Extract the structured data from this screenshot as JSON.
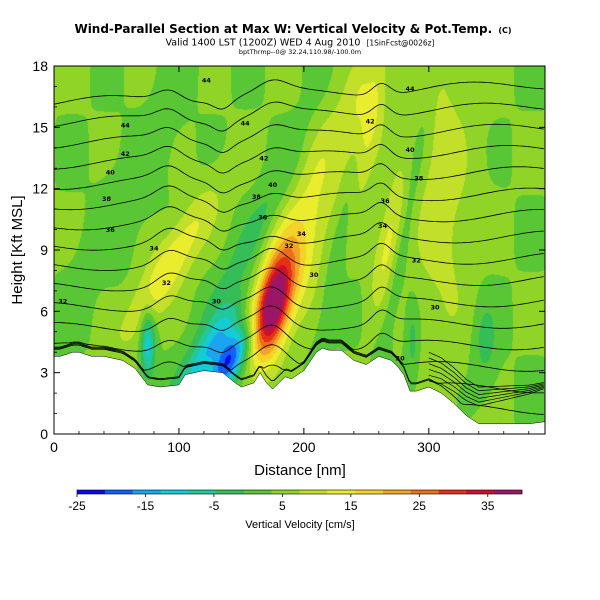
{
  "chart_data": {
    "type": "heatmap",
    "title": "Wind-Parallel Section at Max W: Vertical Velocity & Pot.Temp.",
    "title_mark": "(C)",
    "subtitle": "Valid 1400 LST (1200Z) WED 4 Aug 2010",
    "subtitle_note": "[1SinFcst@0026z]",
    "sub_subtitle": "bptThrmp--0@ 32.24,110.98/-100.0m",
    "xlabel": "Distance [nm]",
    "ylabel": "Height [Kft MSL]",
    "xlim": [
      0,
      393
    ],
    "ylim": [
      0,
      18
    ],
    "xticks": [
      0,
      100,
      200,
      300
    ],
    "yticks": [
      0,
      3,
      6,
      9,
      12,
      15,
      18
    ],
    "colorbar": {
      "label": "Vertical Velocity [cm/s]",
      "range": [
        -25,
        40
      ],
      "ticks": [
        -25,
        -15,
        -5,
        5,
        15,
        25,
        35
      ],
      "colors": [
        "#0a08e6",
        "#1060f8",
        "#1aa4f2",
        "#14ccd8",
        "#22c89a",
        "#35bd58",
        "#58c635",
        "#90d428",
        "#c2e02a",
        "#eaec2e",
        "#f4d22a",
        "#f2a424",
        "#ee6e1c",
        "#e43016",
        "#cc1030",
        "#9c1668"
      ]
    },
    "terrain": {
      "distance": [
        0,
        5,
        10,
        15,
        20,
        30,
        40,
        55,
        65,
        75,
        85,
        100,
        105,
        120,
        135,
        145,
        150,
        160,
        165,
        170,
        175,
        180,
        185,
        190,
        200,
        210,
        215,
        220,
        230,
        240,
        250,
        260,
        270,
        275,
        280,
        285,
        290,
        300,
        310,
        320,
        330,
        340,
        360,
        380,
        393
      ],
      "height": [
        3.8,
        3.8,
        3.9,
        4.0,
        4.0,
        3.8,
        3.8,
        3.6,
        3.2,
        2.4,
        2.3,
        2.4,
        2.9,
        3.1,
        3.0,
        2.5,
        2.3,
        2.5,
        3.0,
        2.5,
        2.2,
        2.5,
        2.8,
        2.7,
        3.1,
        4.0,
        4.2,
        4.1,
        4.1,
        3.6,
        3.4,
        3.8,
        3.6,
        3.3,
        2.9,
        2.1,
        2.1,
        2.3,
        2.0,
        1.5,
        0.9,
        0.5,
        0.5,
        0.5,
        0.6
      ]
    },
    "vertical_velocity_features": [
      {
        "name": "updraft",
        "x": 175,
        "y": 6.2,
        "value": 30,
        "sx": 9,
        "sy": 1.7,
        "tilt": 0.3
      },
      {
        "name": "updraft",
        "x": 185,
        "y": 7.6,
        "value": 14,
        "sx": 16,
        "sy": 2.6,
        "tilt": 0.5
      },
      {
        "name": "updraft",
        "x": 92,
        "y": 8.2,
        "value": 12,
        "sx": 12,
        "sy": 2.5,
        "tilt": 0.9
      },
      {
        "name": "updraft",
        "x": 250,
        "y": 15.5,
        "value": 12,
        "sx": 9,
        "sy": 2.8,
        "tilt": 0.25
      },
      {
        "name": "updraft",
        "x": 268,
        "y": 9.3,
        "value": 10,
        "sx": 7,
        "sy": 2.2,
        "tilt": 0.3
      },
      {
        "name": "updraft",
        "x": 310,
        "y": 12.0,
        "value": 6,
        "sx": 18,
        "sy": 6,
        "tilt": 0
      },
      {
        "name": "updraft",
        "x": 215,
        "y": 13.5,
        "value": 6,
        "sx": 14,
        "sy": 3,
        "tilt": 0.5
      },
      {
        "name": "downdraft",
        "x": 140,
        "y": 3.6,
        "value": -26,
        "sx": 9,
        "sy": 1.2,
        "tilt": 0.7
      },
      {
        "name": "downdraft",
        "x": 126,
        "y": 4.3,
        "value": -12,
        "sx": 8,
        "sy": 1.8,
        "tilt": 1.0
      },
      {
        "name": "downdraft",
        "x": 75,
        "y": 4.4,
        "value": -15,
        "sx": 4,
        "sy": 1.2,
        "tilt": 0
      },
      {
        "name": "downdraft",
        "x": 150,
        "y": 8.5,
        "value": -6,
        "sx": 10,
        "sy": 5,
        "tilt": 0.8
      },
      {
        "name": "downdraft",
        "x": 235,
        "y": 11.5,
        "value": -5,
        "sx": 5,
        "sy": 6,
        "tilt": 0.3
      },
      {
        "name": "downdraft",
        "x": 282,
        "y": 10.5,
        "value": -5,
        "sx": 5,
        "sy": 5,
        "tilt": 0.3
      },
      {
        "name": "downdraft",
        "x": 28,
        "y": 8.5,
        "value": -3,
        "sx": 8,
        "sy": 3,
        "tilt": 0.5
      },
      {
        "name": "downdraft",
        "x": 80,
        "y": 14.0,
        "value": -3,
        "sx": 10,
        "sy": 4,
        "tilt": 0.5
      },
      {
        "name": "downdraft",
        "x": 345,
        "y": 4.5,
        "value": -6,
        "sx": 7,
        "sy": 1.5,
        "tilt": 0
      },
      {
        "name": "downdraft",
        "x": 287,
        "y": 4.5,
        "value": -6,
        "sx": 4,
        "sy": 1.5,
        "tilt": 0
      }
    ],
    "potential_temperature_contours": {
      "base_level": 30,
      "interval": 1,
      "count": 16,
      "labels": [
        {
          "text": "44",
          "x": 122,
          "y": 17.3
        },
        {
          "text": "44",
          "x": 57,
          "y": 15.1
        },
        {
          "text": "42",
          "x": 57,
          "y": 13.7
        },
        {
          "text": "40",
          "x": 45,
          "y": 12.8
        },
        {
          "text": "38",
          "x": 42,
          "y": 11.5
        },
        {
          "text": "36",
          "x": 45,
          "y": 10.0
        },
        {
          "text": "32",
          "x": 7,
          "y": 6.5
        },
        {
          "text": "34",
          "x": 80,
          "y": 9.1
        },
        {
          "text": "32",
          "x": 90,
          "y": 7.4
        },
        {
          "text": "30",
          "x": 130,
          "y": 6.5
        },
        {
          "text": "44",
          "x": 153,
          "y": 15.2
        },
        {
          "text": "42",
          "x": 168,
          "y": 13.5
        },
        {
          "text": "40",
          "x": 175,
          "y": 12.2
        },
        {
          "text": "38",
          "x": 162,
          "y": 11.6
        },
        {
          "text": "36",
          "x": 167,
          "y": 10.6
        },
        {
          "text": "34",
          "x": 198,
          "y": 9.8
        },
        {
          "text": "32",
          "x": 188,
          "y": 9.2
        },
        {
          "text": "30",
          "x": 208,
          "y": 7.8
        },
        {
          "text": "44",
          "x": 285,
          "y": 16.9
        },
        {
          "text": "42",
          "x": 253,
          "y": 15.3
        },
        {
          "text": "40",
          "x": 285,
          "y": 13.9
        },
        {
          "text": "38",
          "x": 292,
          "y": 12.5
        },
        {
          "text": "36",
          "x": 265,
          "y": 11.4
        },
        {
          "text": "34",
          "x": 263,
          "y": 10.2
        },
        {
          "text": "32",
          "x": 290,
          "y": 8.5
        },
        {
          "text": "30",
          "x": 305,
          "y": 6.2
        },
        {
          "text": "30",
          "x": 277,
          "y": 3.7
        }
      ]
    }
  }
}
